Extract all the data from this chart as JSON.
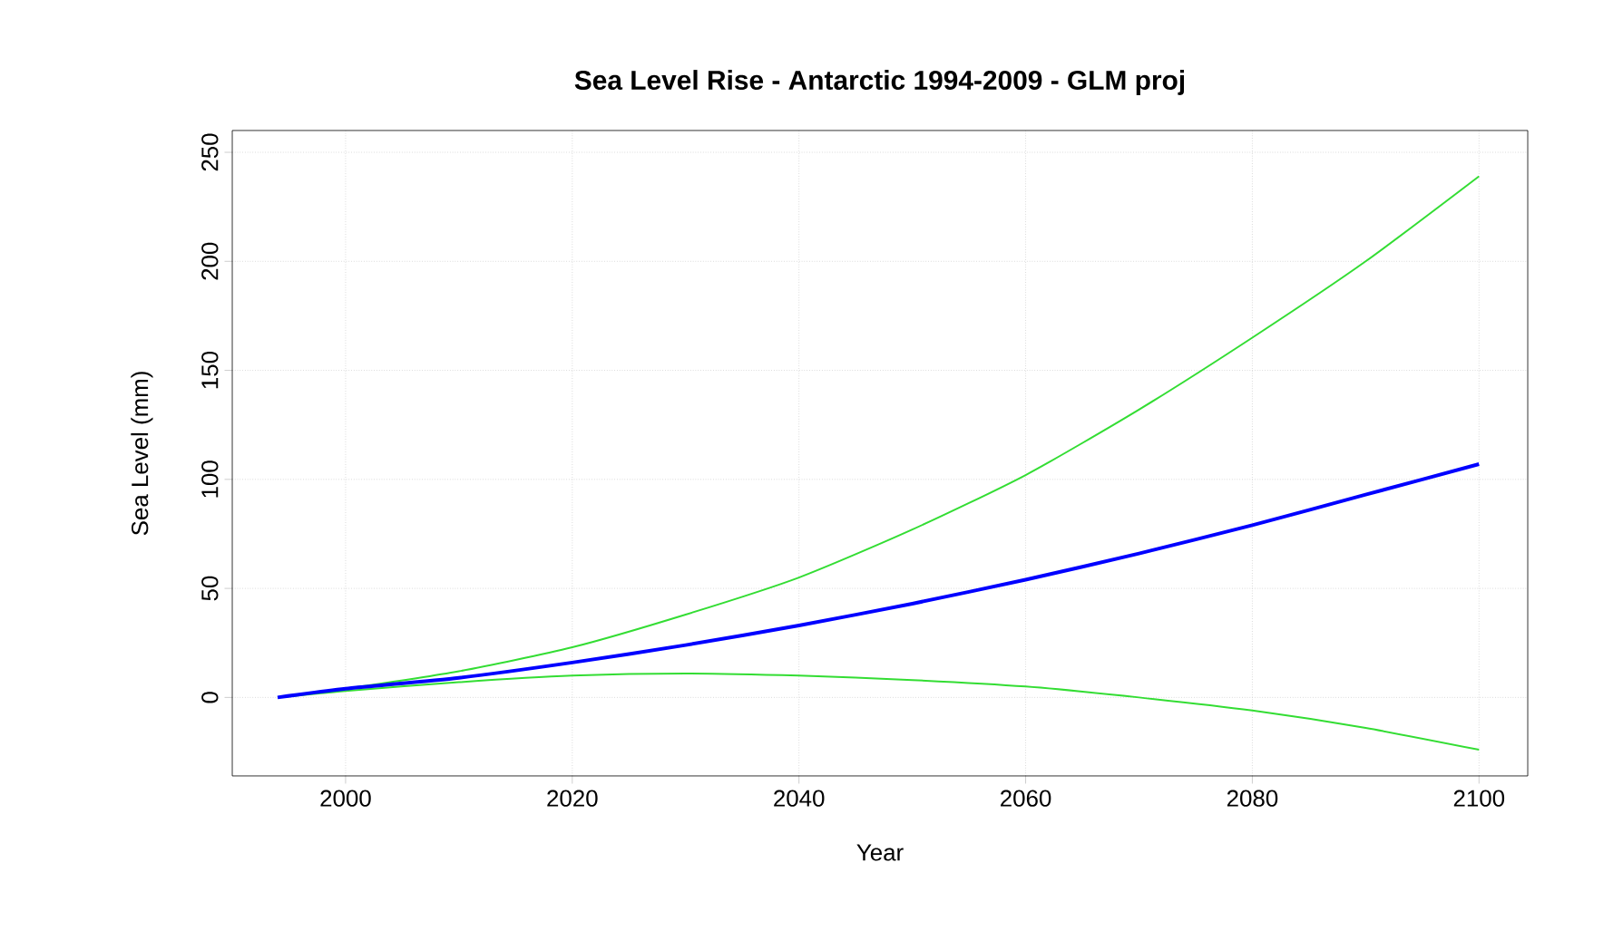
{
  "chart_data": {
    "type": "line",
    "title": "Sea Level Rise - Antarctic 1994-2009 - GLM proj",
    "xlabel": "Year",
    "ylabel": "Sea Level (mm)",
    "x": [
      1994,
      2000,
      2010,
      2020,
      2030,
      2040,
      2050,
      2060,
      2070,
      2080,
      2090,
      2100
    ],
    "series": [
      {
        "color": "#33dd33",
        "values": [
          0,
          4,
          12,
          23,
          38,
          55,
          77,
          102,
          132,
          165,
          200,
          239
        ]
      },
      {
        "color": "#33dd33",
        "values": [
          0,
          3,
          7,
          10,
          11,
          10,
          8,
          5,
          0,
          -6,
          -14,
          -24
        ]
      },
      {
        "color": "#0000ff",
        "values": [
          0,
          4,
          9,
          16,
          24,
          33,
          43,
          54,
          66,
          79,
          93,
          107
        ]
      }
    ],
    "xlim": [
      1990,
      2104.3
    ],
    "ylim": [
      -36,
      260
    ],
    "xticks": [
      2000,
      2020,
      2040,
      2060,
      2080,
      2100
    ],
    "yticks": [
      0,
      50,
      100,
      150,
      200,
      250
    ],
    "grid": true,
    "marker": "none",
    "line_style": "solid"
  }
}
